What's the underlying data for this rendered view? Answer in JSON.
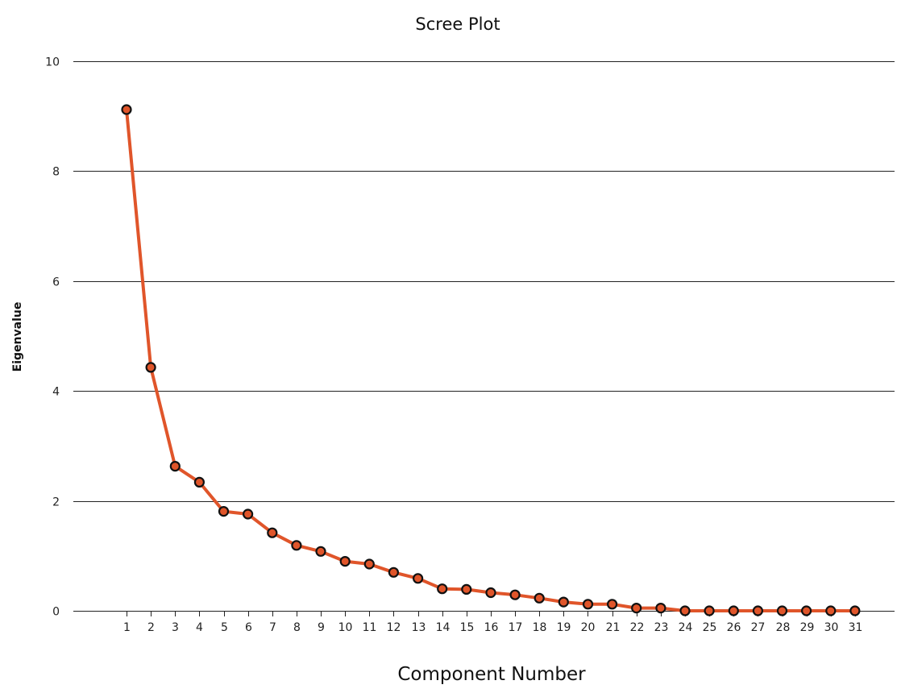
{
  "chart_data": {
    "type": "line",
    "title": "Scree Plot",
    "xlabel": "Component Number",
    "ylabel": "Eigenvalue",
    "ylim": [
      0,
      10
    ],
    "yticks": [
      0,
      2,
      4,
      6,
      8,
      10
    ],
    "grid": "horizontal",
    "x": [
      1,
      2,
      3,
      4,
      5,
      6,
      7,
      8,
      9,
      10,
      11,
      12,
      13,
      14,
      15,
      16,
      17,
      18,
      19,
      20,
      21,
      22,
      23,
      24,
      25,
      26,
      27,
      28,
      29,
      30,
      31
    ],
    "series": [
      {
        "values": [
          9.12,
          4.43,
          2.63,
          2.34,
          1.81,
          1.76,
          1.42,
          1.19,
          1.08,
          0.9,
          0.85,
          0.7,
          0.59,
          0.4,
          0.39,
          0.33,
          0.29,
          0.23,
          0.16,
          0.12,
          0.12,
          0.05,
          0.05,
          0.0,
          0.0,
          0.0,
          0.0,
          0.0,
          0.0,
          0.0,
          0.0
        ],
        "line_color": "#e0552a",
        "marker_fill": "#e0552a",
        "marker_edge": "#111111"
      }
    ]
  }
}
